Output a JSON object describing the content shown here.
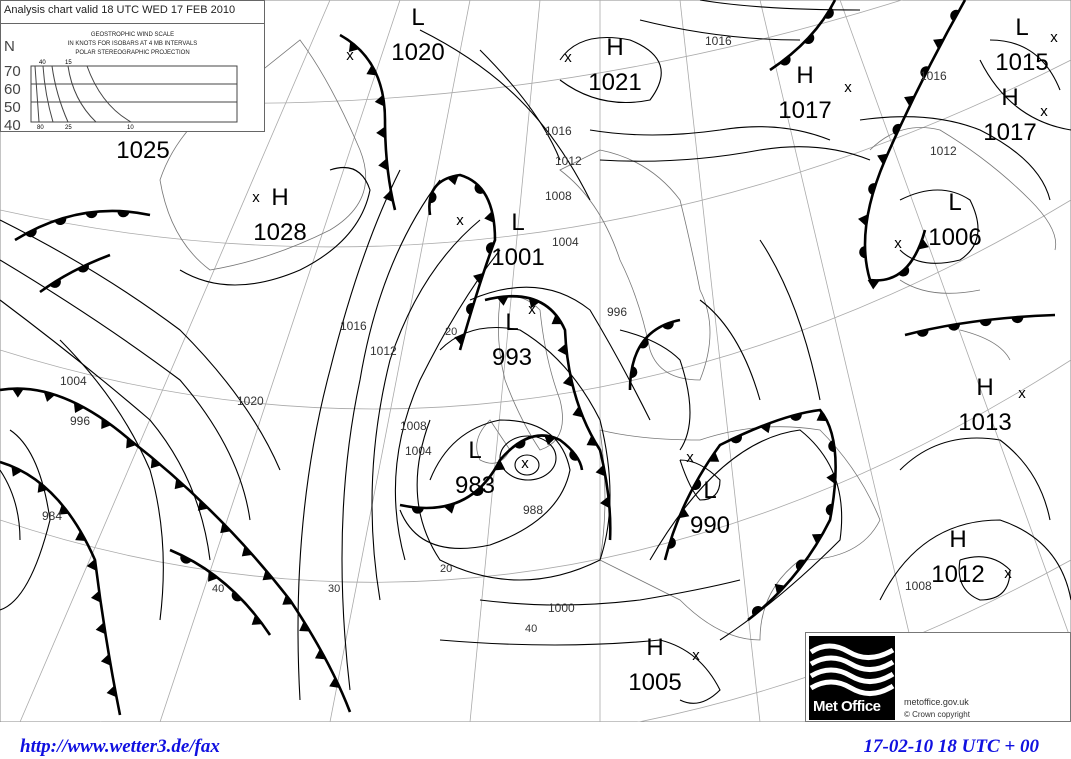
{
  "chart": {
    "title": "Analysis chart valid 18 UTC WED 17 FEB 2010",
    "wind_scale": {
      "heading": "GEOSTROPHIC WIND SCALE",
      "subheading": "IN KNOTS FOR ISOBARS AT  4 MB INTERVALS",
      "projection": "POLAR STEREOGRAPHIC PROJECTION",
      "latitude_axis_label": "N",
      "latitudes": [
        "70",
        "60",
        "50",
        "40"
      ],
      "top_speed_labels": [
        "40",
        "15"
      ],
      "bottom_speed_labels": [
        "80",
        "25",
        "10"
      ]
    },
    "pressure_centres": [
      {
        "type": "L",
        "value": "1020"
      },
      {
        "type": "H",
        "value": "1021"
      },
      {
        "type": "H",
        "value": "1017"
      },
      {
        "type": "L",
        "value": "1015"
      },
      {
        "type": "H",
        "value": "1017"
      },
      {
        "type": "H",
        "value": "1028"
      },
      {
        "type": "L",
        "value": "1001"
      },
      {
        "type": "L",
        "value": "1006"
      },
      {
        "type": "L",
        "value": "993"
      },
      {
        "type": "H",
        "value": "1013"
      },
      {
        "type": "L",
        "value": "983"
      },
      {
        "type": "L",
        "value": "990"
      },
      {
        "type": "H",
        "value": "1012"
      },
      {
        "type": "H",
        "value": "1005"
      },
      {
        "type": "",
        "value": "1025"
      }
    ],
    "isobar_labels": [
      "1016",
      "1016",
      "1012",
      "1008",
      "1004",
      "1020",
      "1016",
      "1012",
      "1008",
      "1004",
      "996",
      "1000",
      "988",
      "1004",
      "996",
      "984",
      "1012",
      "1008",
      "1016"
    ],
    "wind_labels": [
      "40",
      "30",
      "20",
      "40",
      "20"
    ]
  },
  "branding": {
    "logo_text": "Met Office",
    "site": "metoffice.gov.uk",
    "copyright": "©  Crown copyright"
  },
  "footer": {
    "url": "http://www.wetter3.de/fax",
    "timestamp": "17-02-10 18 UTC + 00"
  },
  "colors": {
    "footer_text": "#1010e0",
    "lines": "#000000",
    "graticule": "#999999"
  }
}
